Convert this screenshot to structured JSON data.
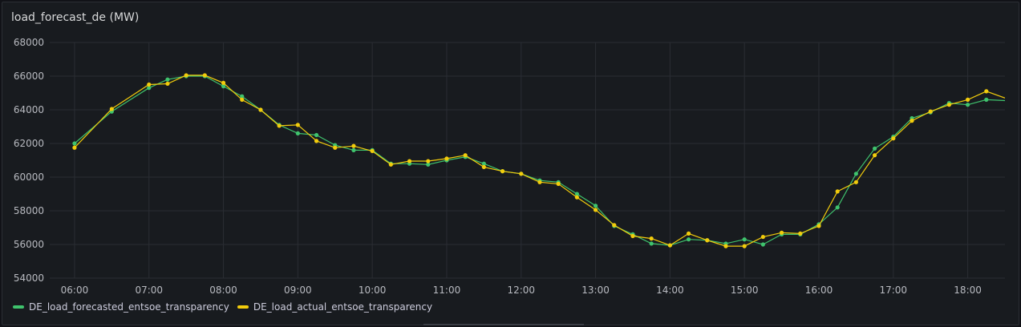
{
  "panel": {
    "title": "load_forecast_de (MW)"
  },
  "chart_data": {
    "type": "line",
    "title": "load_forecast_de (MW)",
    "xlabel": "",
    "ylabel": "",
    "ylim": [
      54000,
      68000
    ],
    "y_ticks": [
      54000,
      56000,
      58000,
      60000,
      62000,
      64000,
      66000,
      68000
    ],
    "xlim": [
      "05:40",
      "18:30"
    ],
    "x_ticks": [
      "06:00",
      "07:00",
      "08:00",
      "09:00",
      "10:00",
      "11:00",
      "12:00",
      "13:00",
      "14:00",
      "15:00",
      "16:00",
      "17:00",
      "18:00"
    ],
    "grid": true,
    "legend_position": "bottom-left",
    "series": [
      {
        "name": "DE_load_forecasted_entsoe_transparency",
        "color": "#3fc36d",
        "x": [
          "06:00",
          "06:30",
          "07:00",
          "07:15",
          "07:30",
          "07:45",
          "08:00",
          "08:15",
          "08:30",
          "08:45",
          "09:00",
          "09:15",
          "09:30",
          "09:45",
          "10:00",
          "10:15",
          "10:30",
          "10:45",
          "11:00",
          "11:15",
          "11:30",
          "11:45",
          "12:00",
          "12:15",
          "12:30",
          "12:45",
          "13:00",
          "13:15",
          "13:30",
          "13:45",
          "14:00",
          "14:15",
          "14:30",
          "14:45",
          "15:00",
          "15:15",
          "15:30",
          "15:45",
          "16:00",
          "16:15",
          "16:30",
          "16:45",
          "17:00",
          "17:15",
          "17:30",
          "17:45",
          "18:00",
          "18:15",
          "18:30"
        ],
        "values": [
          62000,
          63900,
          65300,
          65800,
          66000,
          66000,
          65400,
          64800,
          64000,
          63100,
          62600,
          62500,
          61900,
          61600,
          61600,
          60800,
          60800,
          60750,
          61000,
          61200,
          60800,
          60350,
          60200,
          59800,
          59700,
          59000,
          58300,
          57100,
          56600,
          56050,
          55950,
          56300,
          56250,
          56050,
          56300,
          56000,
          56600,
          56600,
          57200,
          58200,
          60200,
          61700,
          62400,
          63500,
          63850,
          64400,
          64300,
          64600,
          64550
        ]
      },
      {
        "name": "DE_load_actual_entsoe_transparency",
        "color": "#f2cc0c",
        "x": [
          "06:00",
          "06:30",
          "07:00",
          "07:15",
          "07:30",
          "07:45",
          "08:00",
          "08:15",
          "08:30",
          "08:45",
          "09:00",
          "09:15",
          "09:30",
          "09:45",
          "10:00",
          "10:15",
          "10:30",
          "10:45",
          "11:00",
          "11:15",
          "11:30",
          "11:45",
          "12:00",
          "12:15",
          "12:30",
          "12:45",
          "13:00",
          "13:15",
          "13:30",
          "13:45",
          "14:00",
          "14:15",
          "14:30",
          "14:45",
          "15:00",
          "15:15",
          "15:30",
          "15:45",
          "16:00",
          "16:15",
          "16:30",
          "16:45",
          "17:00",
          "17:15",
          "17:30",
          "17:45",
          "18:00",
          "18:15",
          "18:30"
        ],
        "values": [
          61750,
          64050,
          65500,
          65550,
          66050,
          66050,
          65600,
          64600,
          64000,
          63050,
          63100,
          62150,
          61750,
          61850,
          61550,
          60750,
          60950,
          60950,
          61100,
          61300,
          60600,
          60350,
          60200,
          59700,
          59600,
          58800,
          58050,
          57150,
          56500,
          56350,
          55950,
          56650,
          56250,
          55900,
          55900,
          56450,
          56700,
          56650,
          57100,
          59150,
          59700,
          61300,
          62300,
          63350,
          63900,
          64300,
          64600,
          65100,
          64700
        ]
      }
    ]
  }
}
